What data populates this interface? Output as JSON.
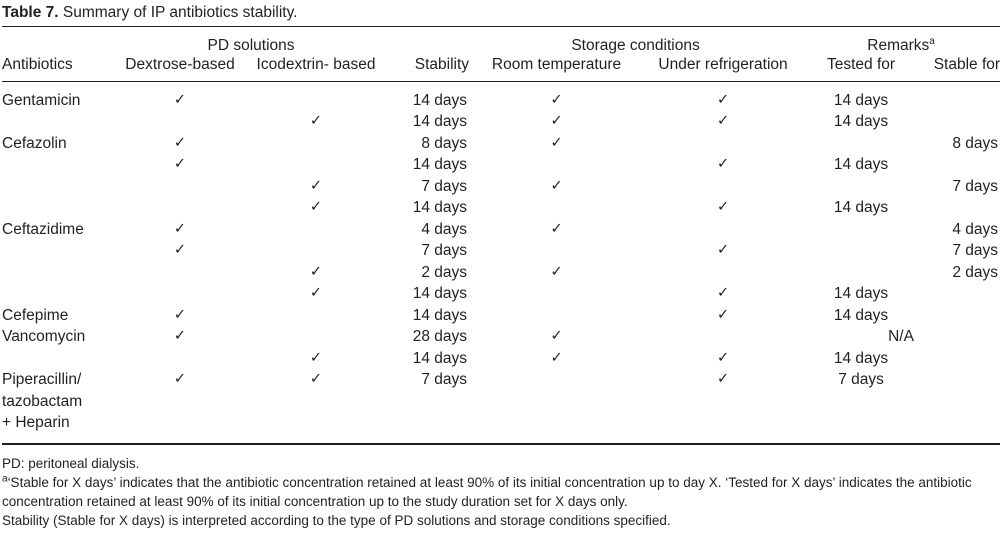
{
  "title": {
    "label": "Table 7.",
    "text": "Summary of IP antibiotics stability."
  },
  "table": {
    "check_glyph": "✓",
    "spanners": {
      "pd": "PD solutions",
      "storage": "Storage conditions",
      "remarks": "Remarks",
      "remarks_sup": "a"
    },
    "columns": [
      "Antibiotics",
      "Dextrose-based",
      "Icodextrin- based",
      "Stability",
      "Room temperature",
      "Under refrigeration",
      "Tested for",
      "Stable for"
    ],
    "rows": [
      {
        "name": "Gentamicin",
        "dextrose": true,
        "icodextrin": false,
        "stability": "14 days",
        "room": true,
        "refrigeration": true,
        "tested": "14 days",
        "stable": ""
      },
      {
        "name": "",
        "dextrose": false,
        "icodextrin": true,
        "stability": "14 days",
        "room": true,
        "refrigeration": true,
        "tested": "14 days",
        "stable": ""
      },
      {
        "name": "Cefazolin",
        "dextrose": true,
        "icodextrin": false,
        "stability": "8 days",
        "room": true,
        "refrigeration": false,
        "tested": "",
        "stable": "8 days"
      },
      {
        "name": "",
        "dextrose": true,
        "icodextrin": false,
        "stability": "14 days",
        "room": false,
        "refrigeration": true,
        "tested": "14 days",
        "stable": ""
      },
      {
        "name": "",
        "dextrose": false,
        "icodextrin": true,
        "stability": "7 days",
        "room": true,
        "refrigeration": false,
        "tested": "",
        "stable": "7 days"
      },
      {
        "name": "",
        "dextrose": false,
        "icodextrin": true,
        "stability": "14 days",
        "room": false,
        "refrigeration": true,
        "tested": "14 days",
        "stable": ""
      },
      {
        "name": "Ceftazidime",
        "dextrose": true,
        "icodextrin": false,
        "stability": "4 days",
        "room": true,
        "refrigeration": false,
        "tested": "",
        "stable": "4 days"
      },
      {
        "name": "",
        "dextrose": true,
        "icodextrin": false,
        "stability": "7 days",
        "room": false,
        "refrigeration": true,
        "tested": "",
        "stable": "7 days"
      },
      {
        "name": "",
        "dextrose": false,
        "icodextrin": true,
        "stability": "2 days",
        "room": true,
        "refrigeration": false,
        "tested": "",
        "stable": "2 days"
      },
      {
        "name": "",
        "dextrose": false,
        "icodextrin": true,
        "stability": "14 days",
        "room": false,
        "refrigeration": true,
        "tested": "14 days",
        "stable": ""
      },
      {
        "name": "Cefepime",
        "dextrose": true,
        "icodextrin": false,
        "stability": "14 days",
        "room": false,
        "refrigeration": true,
        "tested": "14 days",
        "stable": ""
      },
      {
        "name": "Vancomycin",
        "dextrose": true,
        "icodextrin": false,
        "stability": "28 days",
        "room": true,
        "refrigeration": false,
        "na": "N/A"
      },
      {
        "name": "",
        "dextrose": false,
        "icodextrin": true,
        "stability": "14 days",
        "room": true,
        "refrigeration": true,
        "tested": "14 days",
        "stable": ""
      },
      {
        "name": [
          "Piperacillin/",
          "tazobactam",
          "+ Heparin"
        ],
        "dextrose": true,
        "icodextrin": true,
        "stability": "7 days",
        "room": false,
        "refrigeration": true,
        "tested": "7 days",
        "stable": ""
      }
    ]
  },
  "footnotes": {
    "line1": "PD: peritoneal dialysis.",
    "line2_sup": "a",
    "line2": "‘Stable for X days’ indicates that the antibiotic concentration retained at least 90% of its initial concentration up to day X. ‘Tested for X days’ indicates the antibiotic concentration retained at least 90% of its initial concentration up to the study duration set for X days only.",
    "line3": "Stability (Stable for X days) is interpreted according to the type of PD solutions and storage conditions specified."
  }
}
